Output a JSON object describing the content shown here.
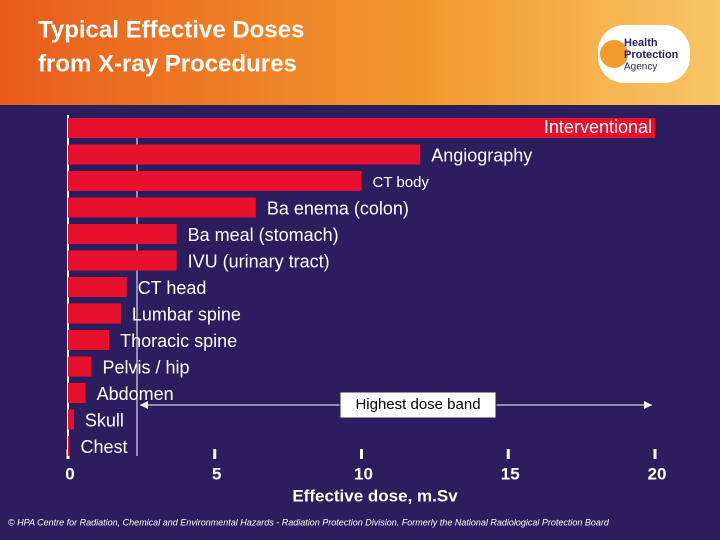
{
  "chart_data": {
    "type": "barh",
    "title": [
      "Typical Effective Doses",
      "from X-ray Procedures"
    ],
    "logo": [
      "Health",
      "Protection",
      "Agency"
    ],
    "categories": [
      "Interventional",
      "Angiography",
      "CT body",
      "Ba enema (colon)",
      "Ba meal (stomach)",
      "IVU (urinary tract)",
      "CT head",
      "Lumbar spine",
      "Thoracic spine",
      "Pelvis / hip",
      "Abdomen",
      "Skull",
      "Chest"
    ],
    "values": [
      20,
      12,
      10,
      6.4,
      3.7,
      3.7,
      2,
      1.8,
      1.4,
      0.8,
      0.6,
      0.2,
      0.05
    ],
    "color": "#e8112d",
    "xlim": [
      0,
      20
    ],
    "xticks": [
      0,
      5,
      10,
      15,
      20
    ],
    "xlabel": "Effective dose, m.Sv",
    "annotation": "Highest dose band",
    "footer": "© HPA Centre for Radiation, Chemical and Environmental Hazards - Radiation Protection Division. Formerly the National Radiological Protection Board"
  }
}
